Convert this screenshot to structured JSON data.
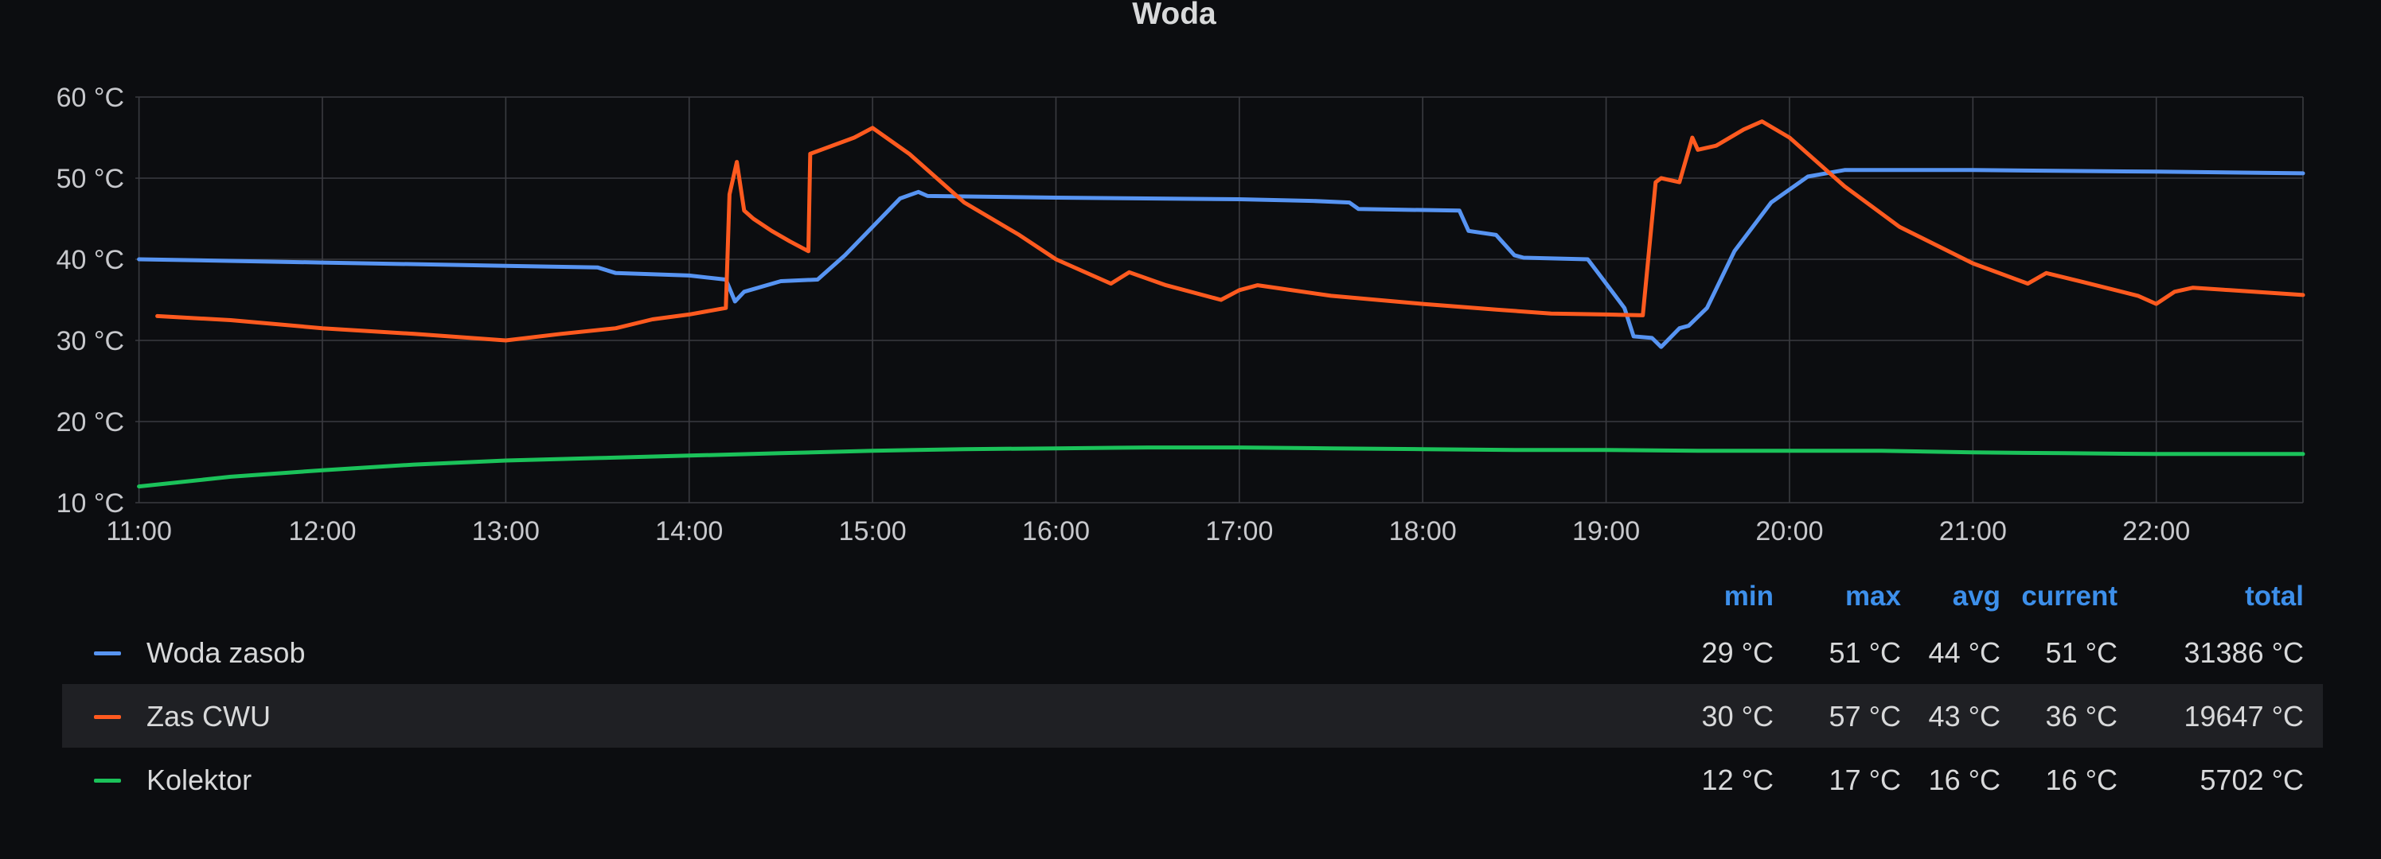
{
  "panel": {
    "title": "Woda"
  },
  "legend": {
    "headers": {
      "min": "min",
      "max": "max",
      "avg": "avg",
      "current": "current",
      "total": "total"
    },
    "rows": [
      {
        "name": "Woda zasob",
        "color": "#5794f2",
        "min": "29 °C",
        "max": "51 °C",
        "avg": "44 °C",
        "current": "51 °C",
        "total": "31386 °C"
      },
      {
        "name": "Zas CWU",
        "color": "#ff5a1f",
        "min": "30 °C",
        "max": "57 °C",
        "avg": "43 °C",
        "current": "36 °C",
        "total": "19647 °C"
      },
      {
        "name": "Kolektor",
        "color": "#1bc25a",
        "min": "12 °C",
        "max": "17 °C",
        "avg": "16 °C",
        "current": "16 °C",
        "total": "5702 °C"
      }
    ]
  },
  "chart_data": {
    "type": "line",
    "title": "Woda",
    "xlabel": "",
    "ylabel": "",
    "x_unit": "hours",
    "xlim": [
      10.98,
      22.8
    ],
    "ylim": [
      10,
      60
    ],
    "grid": true,
    "legend_position": "bottom",
    "x_ticks": [
      "11:00",
      "12:00",
      "13:00",
      "14:00",
      "15:00",
      "16:00",
      "17:00",
      "18:00",
      "19:00",
      "20:00",
      "21:00",
      "22:00"
    ],
    "y_ticks": [
      "10 °C",
      "20 °C",
      "30 °C",
      "40 °C",
      "50 °C",
      "60 °C"
    ],
    "series": [
      {
        "name": "Woda zasob",
        "color": "#5794f2",
        "x": [
          11.0,
          12.0,
          13.0,
          13.5,
          13.6,
          14.0,
          14.2,
          14.25,
          14.3,
          14.5,
          14.7,
          14.85,
          15.0,
          15.15,
          15.25,
          15.3,
          16.0,
          17.0,
          17.4,
          17.6,
          17.65,
          18.2,
          18.25,
          18.4,
          18.5,
          18.55,
          18.9,
          18.95,
          19.1,
          19.15,
          19.25,
          19.3,
          19.4,
          19.45,
          19.55,
          19.7,
          19.9,
          20.1,
          20.3,
          21.0,
          22.0,
          22.8
        ],
        "y": [
          40,
          39.6,
          39.2,
          39,
          38.3,
          38,
          37.5,
          34.8,
          36,
          37.3,
          37.5,
          40.5,
          44,
          47.5,
          48.3,
          47.8,
          47.6,
          47.4,
          47.2,
          47,
          46.2,
          46,
          43.5,
          43,
          40.5,
          40.2,
          40,
          38.5,
          34,
          30.5,
          30.3,
          29.2,
          31.5,
          31.8,
          34,
          41,
          47,
          50.2,
          51,
          51,
          50.8,
          50.6
        ]
      },
      {
        "name": "Zas CWU",
        "color": "#ff5a1f",
        "x": [
          11.1,
          11.5,
          12.0,
          12.5,
          13.0,
          13.3,
          13.6,
          13.8,
          14.0,
          14.2,
          14.22,
          14.26,
          14.3,
          14.35,
          14.45,
          14.55,
          14.65,
          14.66,
          14.72,
          14.9,
          15.0,
          15.2,
          15.5,
          15.8,
          16.0,
          16.3,
          16.4,
          16.6,
          16.9,
          17.0,
          17.1,
          17.5,
          18.0,
          18.4,
          18.7,
          19.0,
          19.2,
          19.27,
          19.3,
          19.4,
          19.47,
          19.5,
          19.6,
          19.75,
          19.85,
          20.0,
          20.3,
          20.6,
          21.0,
          21.3,
          21.4,
          21.6,
          21.9,
          22.0,
          22.1,
          22.2,
          22.4,
          22.8
        ],
        "y": [
          33,
          32.5,
          31.5,
          30.8,
          30,
          30.8,
          31.5,
          32.6,
          33.2,
          34,
          48,
          52,
          46,
          45,
          43.5,
          42.2,
          41,
          53,
          53.5,
          55,
          56.2,
          53,
          47,
          43,
          40,
          37,
          38.4,
          36.8,
          35,
          36.2,
          36.8,
          35.5,
          34.5,
          33.8,
          33.3,
          33.2,
          33.1,
          49.5,
          50,
          49.5,
          55,
          53.5,
          54,
          56,
          57,
          55,
          49,
          44,
          39.5,
          37,
          38.3,
          37.2,
          35.5,
          34.5,
          36,
          36.5,
          36.2,
          35.6
        ]
      },
      {
        "name": "Kolektor",
        "color": "#1bc25a",
        "x": [
          11.0,
          11.5,
          12.0,
          12.5,
          13.0,
          13.5,
          14.0,
          14.5,
          15.0,
          15.5,
          16.0,
          16.5,
          17.0,
          17.5,
          18.0,
          18.5,
          19.0,
          19.5,
          20.0,
          20.5,
          21.0,
          21.5,
          22.0,
          22.8
        ],
        "y": [
          12,
          13.2,
          14,
          14.7,
          15.2,
          15.5,
          15.8,
          16.1,
          16.4,
          16.6,
          16.7,
          16.8,
          16.8,
          16.7,
          16.6,
          16.5,
          16.5,
          16.4,
          16.4,
          16.4,
          16.2,
          16.1,
          16.0,
          16.0
        ]
      }
    ]
  }
}
